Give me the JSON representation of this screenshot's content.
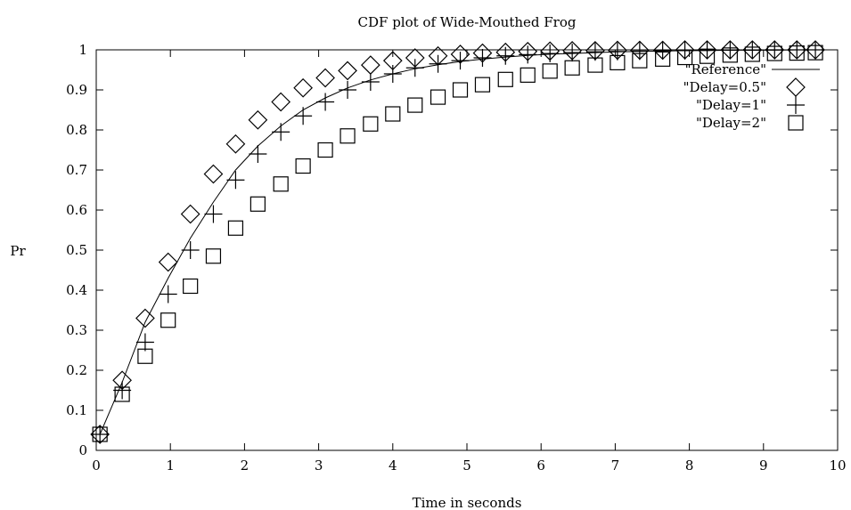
{
  "chart_data": {
    "type": "scatter",
    "title": "CDF plot of Wide-Mouthed Frog",
    "xlabel": "Time in seconds",
    "ylabel": "Pr",
    "xlim": [
      0,
      10
    ],
    "ylim": [
      0,
      1
    ],
    "xticks": [
      "0",
      "1",
      "2",
      "3",
      "4",
      "5",
      "6",
      "7",
      "8",
      "9",
      "10"
    ],
    "yticks": [
      "0",
      "0.1",
      "0.2",
      "0.3",
      "0.4",
      "0.5",
      "0.6",
      "0.7",
      "0.8",
      "0.9",
      "1"
    ],
    "grid": false,
    "legend_position": "top-right",
    "x": [
      0.05,
      0.35,
      0.66,
      0.97,
      1.27,
      1.58,
      1.88,
      2.18,
      2.49,
      2.79,
      3.09,
      3.39,
      3.7,
      4.0,
      4.3,
      4.61,
      4.91,
      5.21,
      5.52,
      5.82,
      6.12,
      6.42,
      6.73,
      7.03,
      7.33,
      7.64,
      7.94,
      8.24,
      8.55,
      8.85,
      9.15,
      9.45,
      9.7
    ],
    "series": [
      {
        "name": "\"Reference\"",
        "marker": "line",
        "values": [
          0.04,
          0.17,
          0.32,
          0.43,
          0.53,
          0.62,
          0.7,
          0.76,
          0.81,
          0.85,
          0.88,
          0.905,
          0.925,
          0.94,
          0.953,
          0.963,
          0.971,
          0.977,
          0.982,
          0.986,
          0.989,
          0.991,
          0.993,
          0.995,
          0.996,
          0.997,
          0.998,
          0.998,
          0.999,
          0.999,
          0.999,
          1.0,
          1.0
        ]
      },
      {
        "name": "\"Delay=0.5\"",
        "marker": "diamond",
        "values": [
          0.04,
          0.175,
          0.33,
          0.47,
          0.59,
          0.69,
          0.765,
          0.825,
          0.87,
          0.905,
          0.93,
          0.948,
          0.962,
          0.973,
          0.98,
          0.985,
          0.989,
          0.992,
          0.994,
          0.996,
          0.997,
          0.998,
          0.998,
          0.999,
          0.999,
          0.999,
          1.0,
          1.0,
          1.0,
          1.0,
          1.0,
          1.0,
          1.0
        ]
      },
      {
        "name": "\"Delay=1\"",
        "marker": "plus",
        "values": [
          0.04,
          0.15,
          0.27,
          0.39,
          0.5,
          0.59,
          0.675,
          0.74,
          0.795,
          0.835,
          0.87,
          0.9,
          0.92,
          0.94,
          0.955,
          0.965,
          0.973,
          0.98,
          0.985,
          0.988,
          0.991,
          0.993,
          0.995,
          0.996,
          0.997,
          0.998,
          0.998,
          0.999,
          0.999,
          0.999,
          1.0,
          1.0,
          1.0
        ]
      },
      {
        "name": "\"Delay=2\"",
        "marker": "square",
        "values": [
          0.04,
          0.14,
          0.235,
          0.325,
          0.41,
          0.485,
          0.555,
          0.615,
          0.665,
          0.71,
          0.75,
          0.785,
          0.815,
          0.84,
          0.862,
          0.882,
          0.9,
          0.913,
          0.926,
          0.937,
          0.947,
          0.955,
          0.962,
          0.968,
          0.973,
          0.977,
          0.981,
          0.984,
          0.987,
          0.989,
          0.991,
          0.992,
          0.993
        ]
      }
    ]
  }
}
